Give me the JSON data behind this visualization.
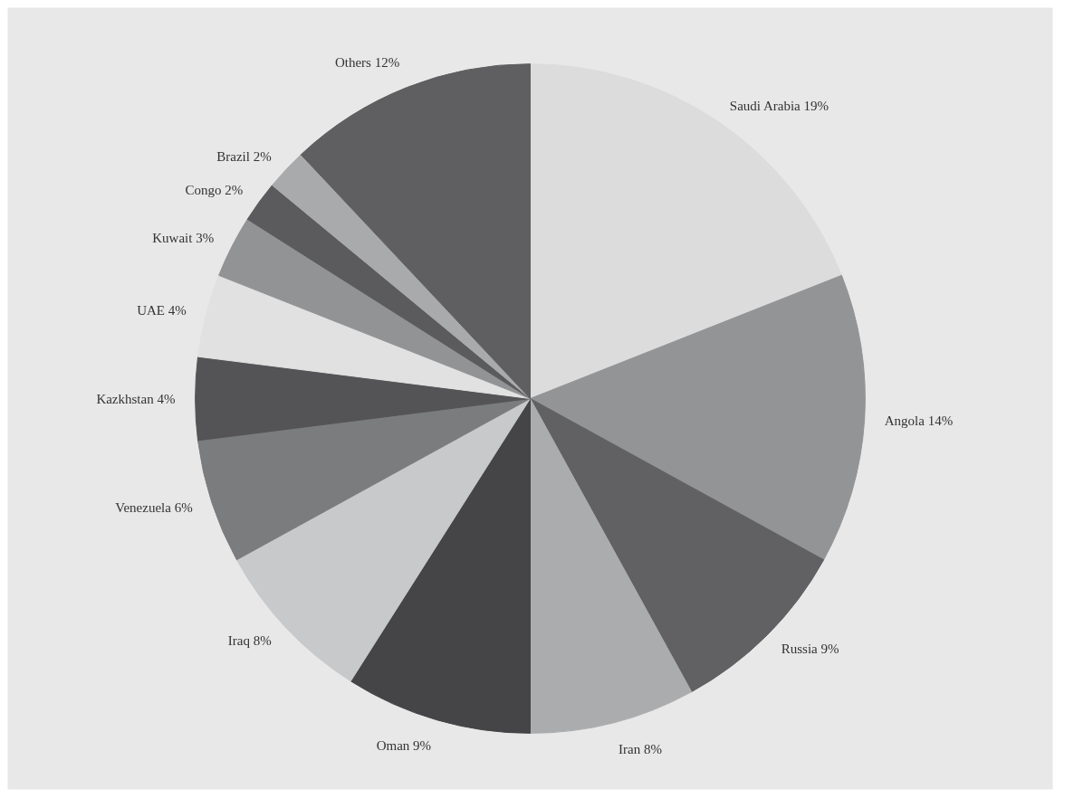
{
  "chart_data": {
    "type": "pie",
    "categories": [
      "Saudi Arabia",
      "Angola",
      "Russia",
      "Iran",
      "Oman",
      "Iraq",
      "Venezuela",
      "Kazkhstan",
      "UAE",
      "Kuwait",
      "Congo",
      "Brazil",
      "Others"
    ],
    "values": [
      19,
      14,
      9,
      8,
      9,
      8,
      6,
      4,
      4,
      3,
      2,
      2,
      12
    ],
    "value_labels": [
      "19%",
      "14%",
      "9%",
      "8%",
      "9%",
      "8%",
      "6%",
      "4%",
      "4%",
      "3%",
      "2%",
      "2%",
      "12%"
    ],
    "colors": [
      "#dcdcdd",
      "#939496",
      "#616163",
      "#abacae",
      "#454547",
      "#c8c9cb",
      "#7b7c7e",
      "#545456",
      "#e1e1e2",
      "#929395",
      "#5b5b5d",
      "#a9aaac",
      "#5f5f61"
    ],
    "legend": false
  }
}
